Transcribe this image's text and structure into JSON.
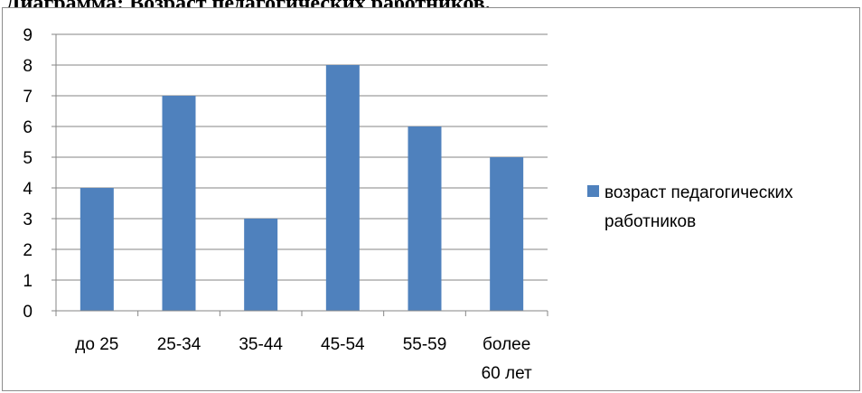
{
  "heading": "Диаграмма: Возраст педагогических работников.",
  "colors": {
    "bar": "#4f81bd",
    "grid": "#868686",
    "axis": "#868686"
  },
  "chart_data": {
    "type": "bar",
    "title": "",
    "xlabel": "",
    "ylabel": "",
    "categories": [
      "до 25",
      "25-34",
      "35-44",
      "45-54",
      "55-59",
      "более 60 лет"
    ],
    "series": [
      {
        "name": "возраст педагогических работников",
        "values": [
          4,
          7,
          3,
          8,
          6,
          5
        ]
      }
    ],
    "ylim": [
      0,
      9
    ],
    "yticks": [
      "0",
      "1",
      "2",
      "3",
      "4",
      "5",
      "6",
      "7",
      "8",
      "9"
    ],
    "grid": true,
    "legend_position": "right"
  }
}
